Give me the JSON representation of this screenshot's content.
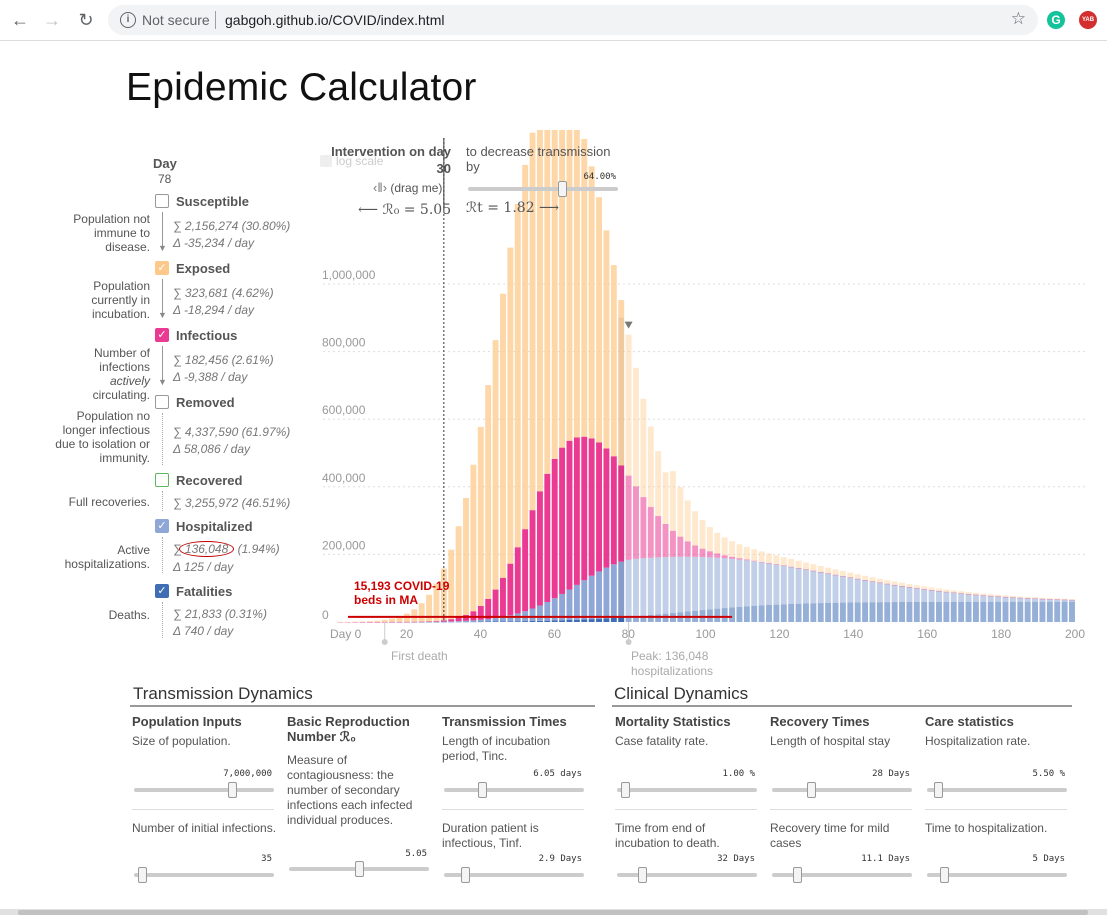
{
  "browser": {
    "security": "Not secure",
    "url": "gabgoh.github.io/COVID/index.html",
    "ext_g": "G",
    "ext_yab": "YAB"
  },
  "title": "Epidemic Calculator",
  "legend": {
    "day_label": "Day",
    "day_value": "78",
    "categories": [
      {
        "label": "Susceptible",
        "desc": "Population not immune to disease.",
        "sum": "∑  2,156,274 (30.80%)",
        "delta": "Δ  -35,234 / day",
        "color": "#ffffff",
        "checked": false
      },
      {
        "label": "Exposed",
        "desc": "Population currently in incubation.",
        "sum": "∑  323,681 (4.62%)",
        "delta": "Δ  -18,294 / day",
        "color": "#fcc98b",
        "checked": true
      },
      {
        "label": "Infectious",
        "desc_pre": "Number of infections ",
        "desc_em": "actively",
        "desc_post": " circulating.",
        "sum": "∑  182,456 (2.61%)",
        "delta": "Δ  -9,388 / day",
        "color": "#ea3a92",
        "checked": true
      },
      {
        "label": "Removed",
        "desc": "Population no longer infectious due to isolation or immunity.",
        "sum": "∑  4,337,590 (61.97%)",
        "delta": "Δ  58,086 / day",
        "color": "#ffffff",
        "checked": false
      },
      {
        "label": "Recovered",
        "desc": "Full recoveries.",
        "sum": "∑  3,255,972 (46.51%)",
        "color": "#ffffff",
        "checked": false
      },
      {
        "label": "Hospitalized",
        "desc": "Active hospitalizations.",
        "sum_pre": "∑ ",
        "sum_circled": "136,048",
        "sum_post": " (1.94%)",
        "delta": "Δ  125 / day",
        "color": "#8fa7d6",
        "checked": true
      },
      {
        "label": "Fatalities",
        "desc": "Deaths.",
        "sum": "∑  21,833 (0.31%)",
        "delta": "Δ  740 / day",
        "color": "#3f6eb5",
        "checked": true
      }
    ]
  },
  "intervention": {
    "title": "Intervention on day",
    "day": "30",
    "decrease_text": "to decrease transmission by",
    "percent": "64.00%",
    "drag": "(drag me)",
    "r0_text": "⟵ ℛ₀ = 5.05",
    "rt_text": "ℛt = 1.82 ⟶",
    "log_scale": "log scale",
    "first_death": "First death",
    "peak_line1": "Peak: 136,048",
    "peak_line2": "hospitalizations",
    "annotation_line1": "15,193 COVID-19",
    "annotation_line2": "beds in MA"
  },
  "chart_data": {
    "type": "bar",
    "stacked": true,
    "x_start_day": 0,
    "x_ticks": [
      "Day 0",
      "20",
      "40",
      "60",
      "80",
      "100",
      "120",
      "140",
      "160",
      "180",
      "200"
    ],
    "y_ticks": [
      "0",
      "200,000",
      "400,000",
      "600,000",
      "800,000",
      "1,000,000"
    ],
    "ylim": [
      0,
      1200000
    ],
    "xlim": [
      0,
      200
    ],
    "intervention_day": 30,
    "first_death_day": 14,
    "selected_day": 78,
    "peak_hospital_day": 80,
    "beds_line_value": 15193,
    "series_colors": {
      "fatalities": "#3f6eb5",
      "hospitalized": "#8fa7d6",
      "infectious": "#ea3a92",
      "exposed": "#fcc98b"
    },
    "series_opacity_future": 0.55,
    "stride_days": 2
  },
  "sections": {
    "transmission": {
      "title": "Transmission Dynamics"
    },
    "clinical": {
      "title": "Clinical Dynamics"
    },
    "columns": [
      {
        "head": "Population Inputs",
        "desc": "Size of population.",
        "val": "7,000,000",
        "frac": 0.72,
        "desc2": "Number of initial infections.",
        "val2": "35",
        "frac2": 0.03
      },
      {
        "head": "Basic Reproduction Number ℛ₀",
        "desc": "Measure of contagiousness: the number of secondary infections each infected individual produces.",
        "val": "",
        "frac": 0,
        "desc2": "",
        "val2": "5.05",
        "frac2": 0.5
      },
      {
        "head": "Transmission Times",
        "desc": "Length of incubation period, Tinc.",
        "val": "6.05 days",
        "frac": 0.26,
        "desc2": "Duration patient is infectious, Tinf.",
        "val2": "2.9 Days",
        "frac2": 0.13
      },
      {
        "head": "Mortality Statistics",
        "desc": "Case fatality rate.",
        "val": "1.00 %",
        "frac": 0.03,
        "desc2": "Time from end of incubation to death.",
        "val2": "32 Days",
        "frac2": 0.16
      },
      {
        "head": "Recovery Times",
        "desc": "Length of hospital stay",
        "val": "28 Days",
        "frac": 0.27,
        "desc2": "Recovery time for mild cases",
        "val2": "11.1 Days",
        "frac2": 0.16
      },
      {
        "head": "Care statistics",
        "desc": "Hospitalization rate.",
        "val": "5.50 %",
        "frac": 0.05,
        "desc2": "Time to hospitalization.",
        "val2": "5 Days",
        "frac2": 0.1
      }
    ]
  }
}
